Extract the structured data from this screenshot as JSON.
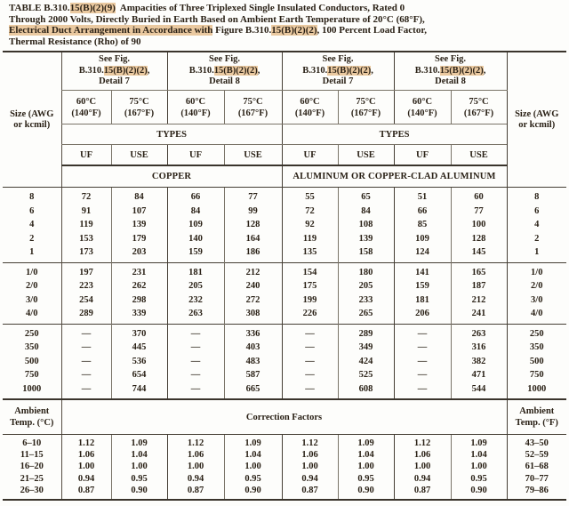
{
  "title": {
    "lines": [
      [
        {
          "t": "TABLE B.310.",
          "h": false
        },
        {
          "t": "15(B)(2)(9)",
          "h": true
        },
        {
          "t": "  Ampacities of Three Triplexed Single Insulated Conductors, Rated 0",
          "h": false
        }
      ],
      [
        {
          "t": "Through 2000 Volts, Directly Buried in Earth Based on Ambient Earth Temperature of 20°C (68°F),",
          "h": false
        }
      ],
      [
        {
          "t": "Electrical Duct Arrangement in Accordance with",
          "h": true
        },
        {
          "t": " Figure B.310.",
          "h": false
        },
        {
          "t": "15(B)(2)(2)",
          "h": true
        },
        {
          "t": ", 100 Percent Load Factor,",
          "h": false
        }
      ],
      [
        {
          "t": "Thermal Resistance (Rho) of 90",
          "h": false
        }
      ]
    ]
  },
  "header": {
    "size_label_line1": "Size (AWG",
    "size_label_line2": "or kcmil)",
    "fig_cells": [
      {
        "l1": "See Fig.",
        "pre": "B.310.",
        "hl": "15(B)(2)(2)",
        "post": ",",
        "l3": "Detail 7"
      },
      {
        "l1": "See Fig.",
        "pre": "B.310.",
        "hl": "15(B)(2)(2)",
        "post": ",",
        "l3": "Detail 8"
      },
      {
        "l1": "See Fig.",
        "pre": "B.310.",
        "hl": "15(B)(2)(2)",
        "post": ",",
        "l3": "Detail 7"
      },
      {
        "l1": "See Fig.",
        "pre": "B.310.",
        "hl": "15(B)(2)(2)",
        "post": ",",
        "l3": "Detail 8"
      }
    ],
    "temp_cells": [
      {
        "c": "60°C",
        "f": "(140°F)"
      },
      {
        "c": "75°C",
        "f": "(167°F)"
      },
      {
        "c": "60°C",
        "f": "(140°F)"
      },
      {
        "c": "75°C",
        "f": "(167°F)"
      },
      {
        "c": "60°C",
        "f": "(140°F)"
      },
      {
        "c": "75°C",
        "f": "(167°F)"
      },
      {
        "c": "60°C",
        "f": "(140°F)"
      },
      {
        "c": "75°C",
        "f": "(167°F)"
      }
    ],
    "types_label": "TYPES",
    "type_cells": [
      "UF",
      "USE",
      "UF",
      "USE",
      "UF",
      "USE",
      "UF",
      "USE"
    ],
    "copper_label": "COPPER",
    "aluminum_label": "ALUMINUM OR COPPER-CLAD ALUMINUM"
  },
  "body": {
    "groups": [
      {
        "rows": [
          {
            "left": "8",
            "right": "8",
            "values": [
              "72",
              "84",
              "66",
              "77",
              "55",
              "65",
              "51",
              "60"
            ]
          },
          {
            "left": "6",
            "right": "6",
            "values": [
              "91",
              "107",
              "84",
              "99",
              "72",
              "84",
              "66",
              "77"
            ]
          },
          {
            "left": "4",
            "right": "4",
            "values": [
              "119",
              "139",
              "109",
              "128",
              "92",
              "108",
              "85",
              "100"
            ]
          },
          {
            "left": "2",
            "right": "2",
            "values": [
              "153",
              "179",
              "140",
              "164",
              "119",
              "139",
              "109",
              "128"
            ]
          },
          {
            "left": "1",
            "right": "1",
            "values": [
              "173",
              "203",
              "159",
              "186",
              "135",
              "158",
              "124",
              "145"
            ]
          }
        ]
      },
      {
        "rows": [
          {
            "left": "1/0",
            "right": "1/0",
            "values": [
              "197",
              "231",
              "181",
              "212",
              "154",
              "180",
              "141",
              "165"
            ]
          },
          {
            "left": "2/0",
            "right": "2/0",
            "values": [
              "223",
              "262",
              "205",
              "240",
              "175",
              "205",
              "159",
              "187"
            ]
          },
          {
            "left": "3/0",
            "right": "3/0",
            "values": [
              "254",
              "298",
              "232",
              "272",
              "199",
              "233",
              "181",
              "212"
            ]
          },
          {
            "left": "4/0",
            "right": "4/0",
            "values": [
              "289",
              "339",
              "263",
              "308",
              "226",
              "265",
              "206",
              "241"
            ]
          }
        ]
      },
      {
        "rows": [
          {
            "left": "250",
            "right": "250",
            "values": [
              "—",
              "370",
              "—",
              "336",
              "—",
              "289",
              "—",
              "263"
            ]
          },
          {
            "left": "350",
            "right": "350",
            "values": [
              "—",
              "445",
              "—",
              "403",
              "—",
              "349",
              "—",
              "316"
            ]
          },
          {
            "left": "500",
            "right": "500",
            "values": [
              "—",
              "536",
              "—",
              "483",
              "—",
              "424",
              "—",
              "382"
            ]
          },
          {
            "left": "750",
            "right": "750",
            "values": [
              "—",
              "654",
              "—",
              "587",
              "—",
              "525",
              "—",
              "471"
            ]
          },
          {
            "left": "1000",
            "right": "1000",
            "values": [
              "—",
              "744",
              "—",
              "665",
              "—",
              "608",
              "—",
              "544"
            ]
          }
        ]
      }
    ]
  },
  "correction": {
    "amb_c_line1": "Ambient",
    "amb_c_line2": "Temp. (°C)",
    "span_label": "Correction Factors",
    "amb_f_line1": "Ambient",
    "amb_f_line2": "Temp. (°F)",
    "rows": [
      {
        "left": "6–10",
        "right": "43–50",
        "values": [
          "1.12",
          "1.09",
          "1.12",
          "1.09",
          "1.12",
          "1.09",
          "1.12",
          "1.09"
        ]
      },
      {
        "left": "11–15",
        "right": "52–59",
        "values": [
          "1.06",
          "1.04",
          "1.06",
          "1.04",
          "1.06",
          "1.04",
          "1.06",
          "1.04"
        ]
      },
      {
        "left": "16–20",
        "right": "61–68",
        "values": [
          "1.00",
          "1.00",
          "1.00",
          "1.00",
          "1.00",
          "1.00",
          "1.00",
          "1.00"
        ]
      },
      {
        "left": "21–25",
        "right": "70–77",
        "values": [
          "0.94",
          "0.95",
          "0.94",
          "0.95",
          "0.94",
          "0.95",
          "0.94",
          "0.95"
        ]
      },
      {
        "left": "26–30",
        "right": "79–86",
        "values": [
          "0.87",
          "0.90",
          "0.87",
          "0.90",
          "0.87",
          "0.90",
          "0.87",
          "0.90"
        ]
      }
    ]
  },
  "colors": {
    "highlight": "#eac9a0",
    "text": "#2a2116",
    "rule_thin": "#7a7468",
    "rule_heavy": "#3a342c"
  }
}
